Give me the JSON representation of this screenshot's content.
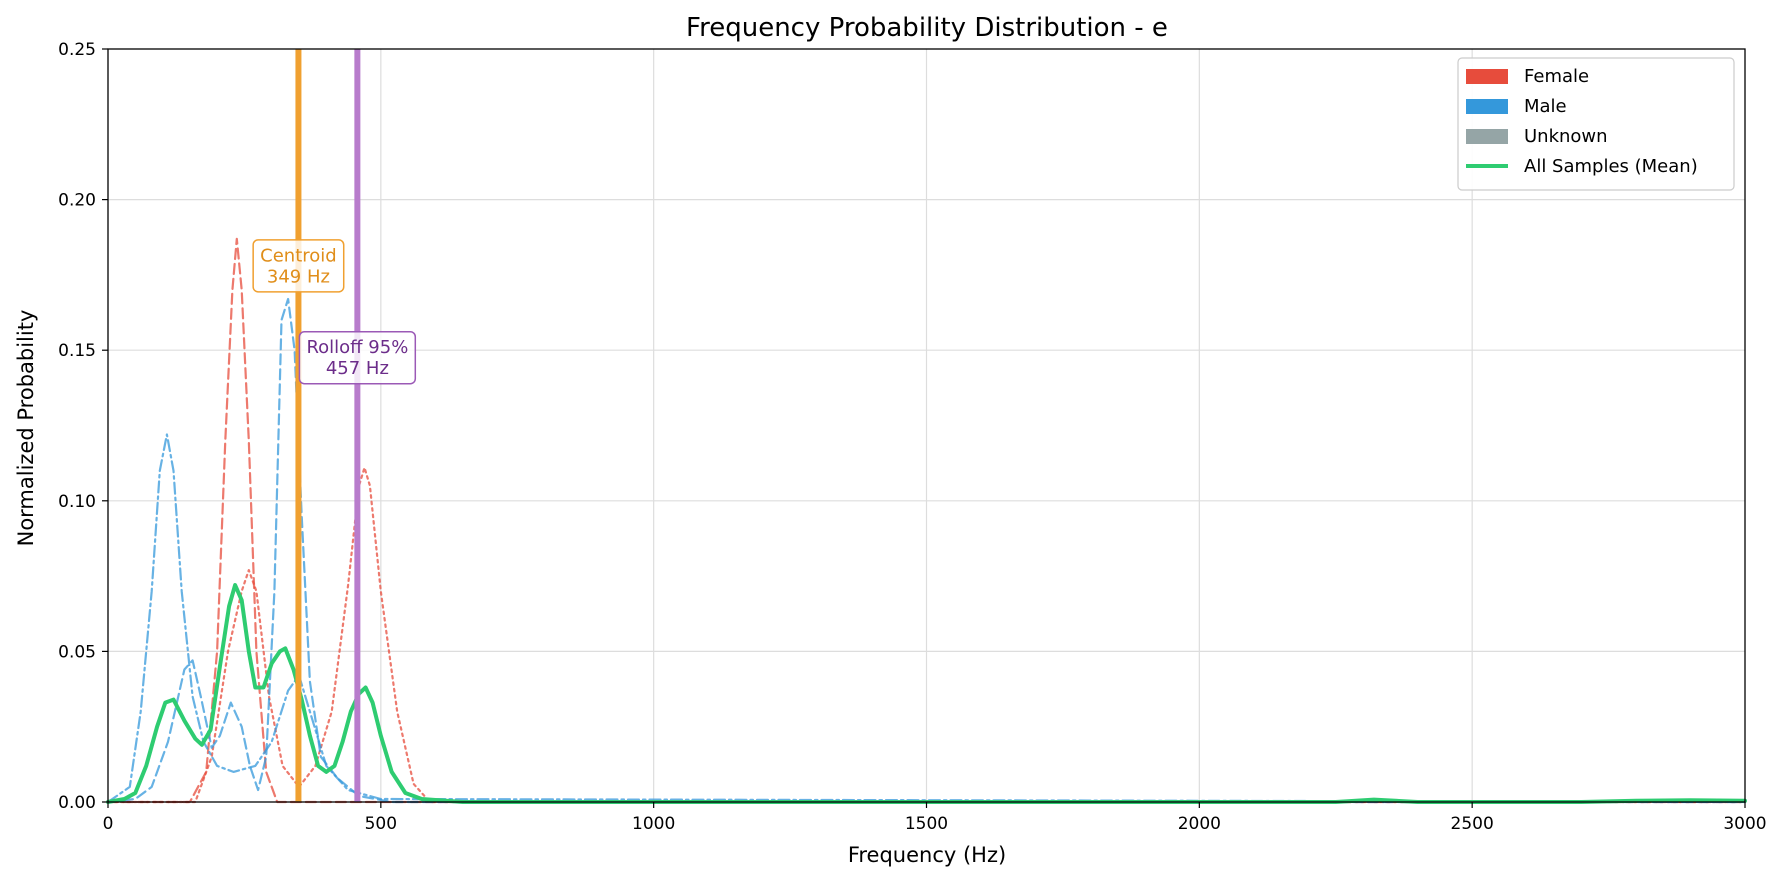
{
  "chart_data": {
    "type": "line",
    "title": "Frequency Probability Distribution - e",
    "xlabel": "Frequency (Hz)",
    "ylabel": "Normalized Probability",
    "xlim": [
      0,
      3000
    ],
    "ylim": [
      0,
      0.25
    ],
    "xticks": [
      0,
      500,
      1000,
      1500,
      2000,
      2500,
      3000
    ],
    "xtick_labels": [
      "0",
      "500",
      "1000",
      "1500",
      "2000",
      "2500",
      "3000"
    ],
    "yticks": [
      0,
      0.05,
      0.1,
      0.15,
      0.2,
      0.25
    ],
    "ytick_labels": [
      "0.00",
      "0.05",
      "0.10",
      "0.15",
      "0.20",
      "0.25"
    ],
    "grid": true,
    "legend_position": "top-right",
    "legend": [
      {
        "label": "Female",
        "kind": "patch",
        "color": "#e74c3c"
      },
      {
        "label": "Male",
        "kind": "patch",
        "color": "#3498db"
      },
      {
        "label": "Unknown",
        "kind": "patch",
        "color": "#95a5a6"
      },
      {
        "label": "All Samples (Mean)",
        "kind": "line",
        "color": "#2ecc71"
      }
    ],
    "series": [
      {
        "color": "#e74c3c",
        "dash": "dashed",
        "width": 2.2,
        "opacity": 0.75,
        "points": [
          [
            0,
            0
          ],
          [
            150,
            0
          ],
          [
            180,
            0.01
          ],
          [
            200,
            0.05
          ],
          [
            215,
            0.12
          ],
          [
            228,
            0.17
          ],
          [
            236,
            0.187
          ],
          [
            245,
            0.17
          ],
          [
            258,
            0.12
          ],
          [
            272,
            0.05
          ],
          [
            290,
            0.01
          ],
          [
            310,
            0
          ],
          [
            3000,
            0
          ]
        ]
      },
      {
        "color": "#e74c3c",
        "dash": "dotted",
        "width": 2.2,
        "opacity": 0.75,
        "points": [
          [
            0,
            0
          ],
          [
            160,
            0
          ],
          [
            190,
            0.015
          ],
          [
            220,
            0.05
          ],
          [
            245,
            0.07
          ],
          [
            258,
            0.077
          ],
          [
            272,
            0.07
          ],
          [
            295,
            0.035
          ],
          [
            320,
            0.012
          ],
          [
            350,
            0.005
          ],
          [
            380,
            0.012
          ],
          [
            410,
            0.03
          ],
          [
            440,
            0.072
          ],
          [
            460,
            0.105
          ],
          [
            470,
            0.111
          ],
          [
            480,
            0.105
          ],
          [
            500,
            0.07
          ],
          [
            530,
            0.03
          ],
          [
            560,
            0.006
          ],
          [
            590,
            0
          ],
          [
            3000,
            0
          ]
        ]
      },
      {
        "color": "#3498db",
        "dash": "dashdot",
        "width": 2.2,
        "opacity": 0.75,
        "points": [
          [
            0,
            0
          ],
          [
            40,
            0.005
          ],
          [
            60,
            0.03
          ],
          [
            80,
            0.07
          ],
          [
            95,
            0.11
          ],
          [
            108,
            0.122
          ],
          [
            120,
            0.11
          ],
          [
            135,
            0.07
          ],
          [
            155,
            0.035
          ],
          [
            175,
            0.02
          ],
          [
            200,
            0.012
          ],
          [
            230,
            0.01
          ],
          [
            270,
            0.012
          ],
          [
            300,
            0.02
          ],
          [
            330,
            0.037
          ],
          [
            350,
            0.042
          ],
          [
            370,
            0.03
          ],
          [
            400,
            0.012
          ],
          [
            440,
            0.004
          ],
          [
            500,
            0.001
          ],
          [
            3000,
            0
          ]
        ]
      },
      {
        "color": "#3498db",
        "dash": "dashed",
        "width": 2.2,
        "opacity": 0.75,
        "points": [
          [
            0,
            0
          ],
          [
            50,
            0.001
          ],
          [
            80,
            0.005
          ],
          [
            110,
            0.02
          ],
          [
            140,
            0.044
          ],
          [
            155,
            0.047
          ],
          [
            170,
            0.035
          ],
          [
            190,
            0.018
          ],
          [
            205,
            0.022
          ],
          [
            225,
            0.033
          ],
          [
            245,
            0.025
          ],
          [
            260,
            0.012
          ],
          [
            275,
            0.004
          ],
          [
            290,
            0.015
          ],
          [
            305,
            0.07
          ],
          [
            318,
            0.16
          ],
          [
            330,
            0.167
          ],
          [
            342,
            0.15
          ],
          [
            355,
            0.095
          ],
          [
            370,
            0.04
          ],
          [
            390,
            0.015
          ],
          [
            420,
            0.008
          ],
          [
            460,
            0.002
          ],
          [
            520,
            0
          ],
          [
            3000,
            0
          ]
        ]
      },
      {
        "color": "#2ecc71",
        "dash": "solid",
        "width": 4,
        "opacity": 1,
        "points": [
          [
            0,
            0
          ],
          [
            30,
            0.001
          ],
          [
            50,
            0.003
          ],
          [
            70,
            0.012
          ],
          [
            90,
            0.025
          ],
          [
            105,
            0.033
          ],
          [
            120,
            0.034
          ],
          [
            140,
            0.027
          ],
          [
            160,
            0.021
          ],
          [
            172,
            0.019
          ],
          [
            188,
            0.024
          ],
          [
            205,
            0.045
          ],
          [
            222,
            0.065
          ],
          [
            233,
            0.072
          ],
          [
            245,
            0.067
          ],
          [
            258,
            0.05
          ],
          [
            270,
            0.038
          ],
          [
            285,
            0.038
          ],
          [
            300,
            0.046
          ],
          [
            315,
            0.05
          ],
          [
            325,
            0.051
          ],
          [
            340,
            0.044
          ],
          [
            355,
            0.034
          ],
          [
            370,
            0.022
          ],
          [
            385,
            0.012
          ],
          [
            400,
            0.01
          ],
          [
            415,
            0.012
          ],
          [
            430,
            0.02
          ],
          [
            445,
            0.03
          ],
          [
            460,
            0.036
          ],
          [
            472,
            0.038
          ],
          [
            485,
            0.033
          ],
          [
            500,
            0.022
          ],
          [
            520,
            0.01
          ],
          [
            545,
            0.003
          ],
          [
            575,
            0.001
          ],
          [
            650,
            0
          ],
          [
            1000,
            0
          ],
          [
            1500,
            0
          ],
          [
            2000,
            0
          ],
          [
            2250,
            0
          ],
          [
            2320,
            0.0008
          ],
          [
            2400,
            0
          ],
          [
            2700,
            0
          ],
          [
            2800,
            0.0004
          ],
          [
            2900,
            0.0006
          ],
          [
            3000,
            0.0004
          ]
        ]
      }
    ],
    "vlines": [
      {
        "x": 349,
        "color": "#f0a030",
        "width": 6
      },
      {
        "x": 457,
        "color": "#b87ccc",
        "width": 6
      }
    ],
    "annotations": [
      {
        "lines": [
          "Centroid",
          "349 Hz"
        ],
        "x": 349,
        "y": 0.178,
        "color": "#e08e1a",
        "border": "#f0a030"
      },
      {
        "lines": [
          "Rolloff 95%",
          "457 Hz"
        ],
        "x": 457,
        "y": 0.1475,
        "color": "#6c2d8a",
        "border": "#9b59b6"
      }
    ]
  }
}
